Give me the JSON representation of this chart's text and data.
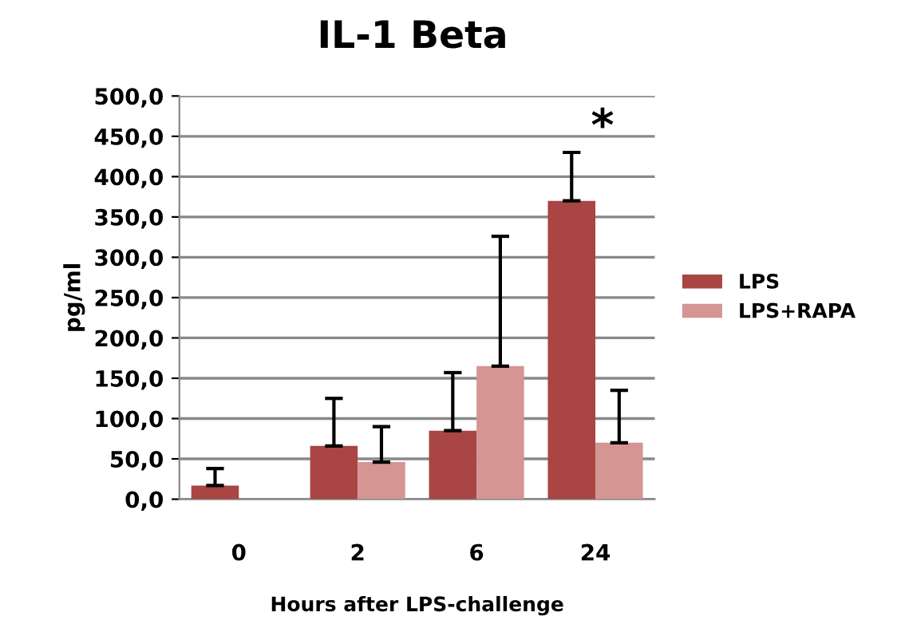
{
  "chart_data": {
    "type": "bar",
    "title": "IL-1 Beta",
    "xlabel": "Hours after LPS-challenge",
    "ylabel": "pg/ml",
    "categories": [
      "0",
      "2",
      "6",
      "24"
    ],
    "series": [
      {
        "name": "LPS",
        "color": "#a94543",
        "values": [
          17,
          66,
          85,
          370
        ],
        "errors": [
          [
            17,
            38
          ],
          [
            66,
            125
          ],
          [
            85,
            157
          ],
          [
            370,
            430
          ]
        ]
      },
      {
        "name": "LPS+RAPA",
        "color": "#d49593",
        "values": [
          null,
          46,
          165,
          70
        ],
        "errors": [
          null,
          [
            46,
            90
          ],
          [
            165,
            326
          ],
          [
            70,
            135
          ]
        ]
      }
    ],
    "ylim": [
      0,
      500
    ],
    "yticks": [
      {
        "value": 0,
        "label": "0,0"
      },
      {
        "value": 50,
        "label": "50,0"
      },
      {
        "value": 100,
        "label": "100,0"
      },
      {
        "value": 150,
        "label": "150,0"
      },
      {
        "value": 200,
        "label": "200,0"
      },
      {
        "value": 250,
        "label": "250,0"
      },
      {
        "value": 300,
        "label": "300,0"
      },
      {
        "value": 350,
        "label": "350,0"
      },
      {
        "value": 400,
        "label": "400,0"
      },
      {
        "value": 450,
        "label": "450,0"
      },
      {
        "value": 500,
        "label": "500,0"
      }
    ],
    "annotations": [
      "*"
    ],
    "grid": "y",
    "legend": "right"
  }
}
